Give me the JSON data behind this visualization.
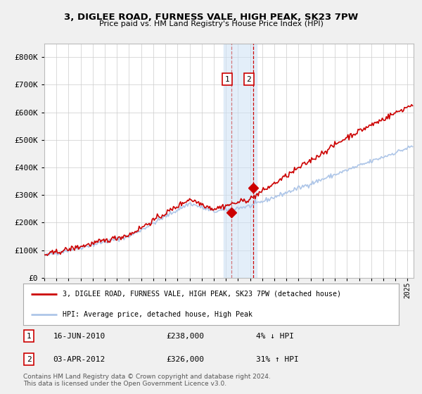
{
  "title": "3, DIGLEE ROAD, FURNESS VALE, HIGH PEAK, SK23 7PW",
  "subtitle": "Price paid vs. HM Land Registry's House Price Index (HPI)",
  "legend_line1": "3, DIGLEE ROAD, FURNESS VALE, HIGH PEAK, SK23 7PW (detached house)",
  "legend_line2": "HPI: Average price, detached house, High Peak",
  "transaction1_date": "16-JUN-2010",
  "transaction1_price": 238000,
  "transaction1_label": "4% ↓ HPI",
  "transaction2_date": "03-APR-2012",
  "transaction2_price": 326000,
  "transaction2_label": "31% ↑ HPI",
  "footer": "Contains HM Land Registry data © Crown copyright and database right 2024.\nThis data is licensed under the Open Government Licence v3.0.",
  "hpi_color": "#aec6e8",
  "property_color": "#cc0000",
  "background_color": "#f0f0f0",
  "plot_bg_color": "#ffffff",
  "grid_color": "#cccccc",
  "ylim": [
    0,
    850000
  ],
  "xlim_start": 1995.0,
  "xlim_end": 2025.5,
  "transaction1_x": 2010.46,
  "transaction2_x": 2012.25,
  "shade_x1": 2009.8,
  "shade_x2": 2012.55
}
